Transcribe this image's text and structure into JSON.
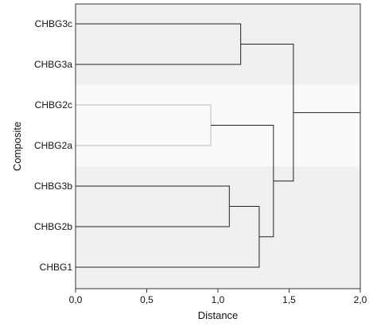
{
  "chart_data": {
    "type": "dendrogram",
    "xlabel": "Distance",
    "ylabel": "Composite",
    "xlim": [
      0,
      2
    ],
    "x_ticks": [
      "0,0",
      "0,5",
      "1,0",
      "1,5",
      "2,0"
    ],
    "x_tick_values": [
      0,
      0.5,
      1.0,
      1.5,
      2.0
    ],
    "leaves": [
      "CHBG3c",
      "CHBG3a",
      "CHBG2c",
      "CHBG2a",
      "CHBG3b",
      "CHBG2b",
      "CHBG1"
    ],
    "merges": [
      {
        "a": "CHBG3c",
        "b": "CHBG3a",
        "distance": 1.16,
        "id": "m1"
      },
      {
        "a": "CHBG2c",
        "b": "CHBG2a",
        "distance": 0.95,
        "id": "m2",
        "highlighted": true
      },
      {
        "a": "CHBG3b",
        "b": "CHBG2b",
        "distance": 1.08,
        "id": "m3"
      },
      {
        "a": "m3",
        "b": "CHBG1",
        "distance": 1.29,
        "id": "m4"
      },
      {
        "a": "m2",
        "b": "m4",
        "distance": 1.39,
        "id": "m5"
      },
      {
        "a": "m1",
        "b": "m5",
        "distance": 1.53,
        "id": "m6"
      },
      {
        "a": "m6",
        "b": "root",
        "distance": 2.0,
        "id": "m7"
      }
    ],
    "highlighted_cluster": [
      "CHBG2c",
      "CHBG2a"
    ],
    "grid": false
  },
  "colors": {
    "plot_background": "#f0f0f0",
    "highlight_band": "#fafafa",
    "line": "#222222",
    "highlight_line": "#bbbbbb",
    "frame": "#333333"
  }
}
